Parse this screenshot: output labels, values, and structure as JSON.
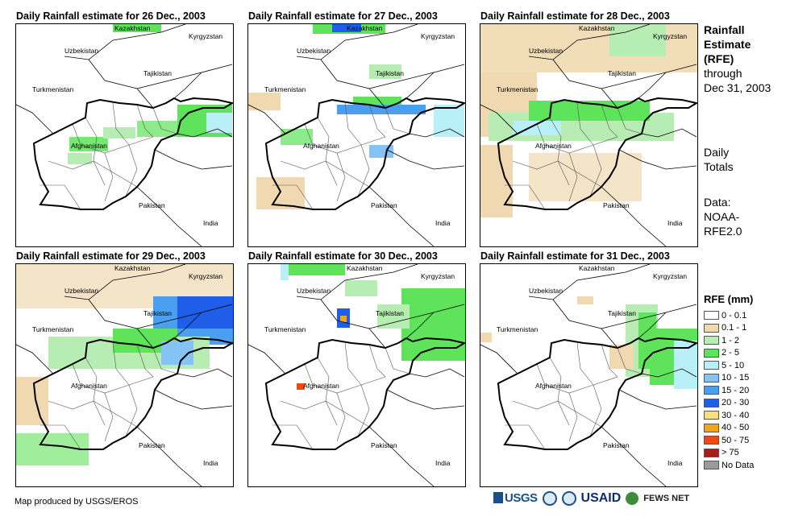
{
  "panels": [
    {
      "title": "Daily Rainfall estimate for 26 Dec., 2003"
    },
    {
      "title": "Daily Rainfall estimate for 27 Dec., 2003"
    },
    {
      "title": "Daily Rainfall estimate for 28 Dec., 2003"
    },
    {
      "title": "Daily Rainfall estimate for 29 Dec., 2003"
    },
    {
      "title": "Daily Rainfall estimate for 30 Dec., 2003"
    },
    {
      "title": "Daily Rainfall estimate for 31 Dec., 2003"
    }
  ],
  "country_labels": {
    "kazakhstan": "Kazakhstan",
    "kyrgyzstan": "Kyrgyzstan",
    "uzbekistan": "Uzbekistan",
    "tajikistan": "Tajikistan",
    "turkmenistan": "Turkmenistan",
    "afghanistan": "Afghanistan",
    "pakistan": "Pakistan",
    "india": "India"
  },
  "side": {
    "title_line1": "Rainfall",
    "title_line2": "Estimate",
    "title_line3": "(RFE)",
    "sub_line1": "through",
    "sub_line2": "Dec 31, 2003",
    "totals_line1": "Daily",
    "totals_line2": "Totals",
    "data_line1": "Data:",
    "data_line2": "NOAA-",
    "data_line3": "RFE2.0"
  },
  "legend": {
    "title": "RFE (mm)",
    "items": [
      {
        "label": "0 - 0.1",
        "color": "#ffffff"
      },
      {
        "label": "0.1 - 1",
        "color": "#f0d9b0"
      },
      {
        "label": "1 - 2",
        "color": "#b7ecb3"
      },
      {
        "label": "2 - 5",
        "color": "#5ee35a"
      },
      {
        "label": "5 - 10",
        "color": "#b9f0f7"
      },
      {
        "label": "10 - 15",
        "color": "#84c3f3"
      },
      {
        "label": "15 - 20",
        "color": "#4a9ff0"
      },
      {
        "label": "20 - 30",
        "color": "#1f5ee8"
      },
      {
        "label": "30 - 40",
        "color": "#f7df7a"
      },
      {
        "label": "40 - 50",
        "color": "#f0a51a"
      },
      {
        "label": "50 - 75",
        "color": "#f04a10"
      },
      {
        "label": "> 75",
        "color": "#a3201a"
      },
      {
        "label": "No Data",
        "color": "#9b9b9b"
      }
    ]
  },
  "footer": {
    "credit": "Map produced by USGS/EROS",
    "logo_usgs": "USGS",
    "logo_usaid": "USAID",
    "logo_fews": "FEWS NET"
  }
}
